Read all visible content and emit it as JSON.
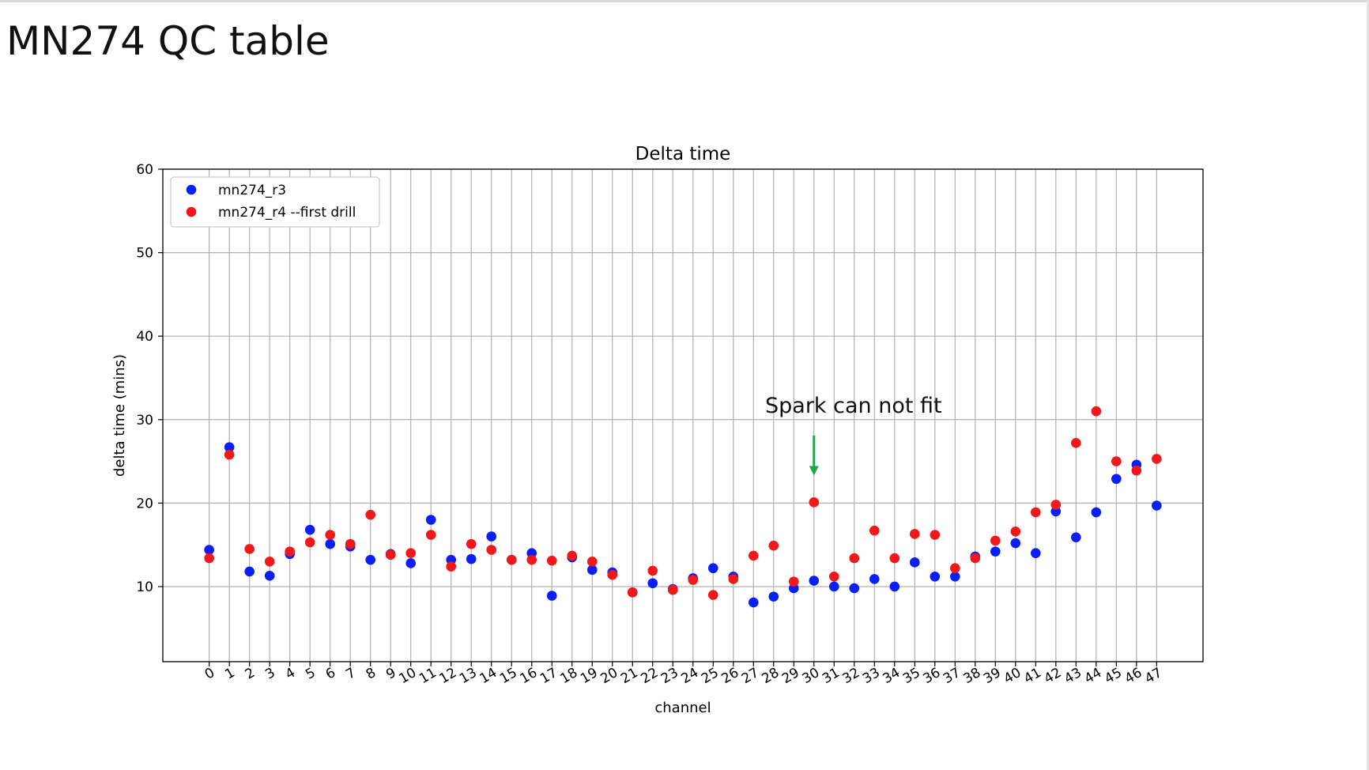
{
  "slide": {
    "title": "MN274 QC table",
    "annotation": "Spark can not fit"
  },
  "colors": {
    "series_blue": "#0a1ff5",
    "series_red": "#f01818",
    "arrow": "#1fa64a",
    "grid": "#b0b0b0",
    "axis": "#000000"
  },
  "chart_data": {
    "type": "scatter",
    "title": "Delta time",
    "xlabel": "channel",
    "ylabel": "delta time (mins)",
    "xlim": [
      -2.3,
      49.3
    ],
    "ylim": [
      1,
      60
    ],
    "y_ticks": [
      10,
      20,
      30,
      40,
      50,
      60
    ],
    "x_ticks": [
      0,
      1,
      2,
      3,
      4,
      5,
      6,
      7,
      8,
      9,
      10,
      11,
      12,
      13,
      14,
      15,
      16,
      17,
      18,
      19,
      20,
      21,
      22,
      23,
      24,
      25,
      26,
      27,
      28,
      29,
      30,
      31,
      32,
      33,
      34,
      35,
      36,
      37,
      38,
      39,
      40,
      41,
      42,
      43,
      44,
      45,
      46,
      47
    ],
    "grid": true,
    "legend_position": "top-left",
    "series": [
      {
        "name": "mn274_r3",
        "color": "#0a1ff5",
        "x": [
          0,
          1,
          2,
          3,
          4,
          5,
          6,
          7,
          8,
          9,
          10,
          11,
          12,
          13,
          14,
          15,
          16,
          17,
          18,
          19,
          20,
          21,
          22,
          23,
          24,
          25,
          26,
          27,
          28,
          29,
          30,
          31,
          32,
          33,
          34,
          35,
          36,
          37,
          38,
          39,
          40,
          41,
          42,
          43,
          44,
          45,
          46,
          47
        ],
        "y": [
          14.4,
          26.7,
          11.8,
          11.3,
          13.9,
          16.8,
          15.1,
          14.8,
          13.2,
          13.9,
          12.8,
          18.0,
          13.2,
          13.3,
          16.0,
          13.2,
          14.0,
          8.9,
          13.5,
          12.0,
          11.7,
          9.3,
          10.4,
          9.7,
          11.0,
          12.2,
          11.2,
          8.1,
          8.8,
          9.8,
          10.7,
          10.0,
          9.8,
          10.9,
          10.0,
          12.9,
          11.2,
          11.2,
          13.6,
          14.2,
          15.2,
          14.0,
          19.0,
          15.9,
          18.9,
          22.9,
          24.6,
          19.7
        ]
      },
      {
        "name": "mn274_r4 --first drill",
        "color": "#f01818",
        "x": [
          0,
          1,
          2,
          3,
          4,
          5,
          6,
          7,
          8,
          9,
          10,
          11,
          12,
          13,
          14,
          15,
          16,
          17,
          18,
          19,
          20,
          21,
          22,
          23,
          24,
          25,
          26,
          27,
          28,
          29,
          30,
          31,
          32,
          33,
          34,
          35,
          36,
          37,
          38,
          39,
          40,
          41,
          42,
          43,
          44,
          45,
          46,
          47
        ],
        "y": [
          13.4,
          25.8,
          14.5,
          13.0,
          14.2,
          15.3,
          16.2,
          15.1,
          18.6,
          13.8,
          14.0,
          16.2,
          12.4,
          15.1,
          14.4,
          13.2,
          13.2,
          13.1,
          13.7,
          13.0,
          11.4,
          9.3,
          11.9,
          9.6,
          10.8,
          9.0,
          10.9,
          13.7,
          14.9,
          10.6,
          20.1,
          11.2,
          13.4,
          16.7,
          13.4,
          16.3,
          16.2,
          12.2,
          13.4,
          15.5,
          16.6,
          18.9,
          19.8,
          27.2,
          31.0,
          25.0,
          23.9,
          25.3
        ]
      }
    ],
    "annotations": [
      {
        "text": "Spark can not fit",
        "arrow_to_x": 30,
        "arrow_to_y": 23.3,
        "arrow_from_y": 28.1
      }
    ]
  }
}
